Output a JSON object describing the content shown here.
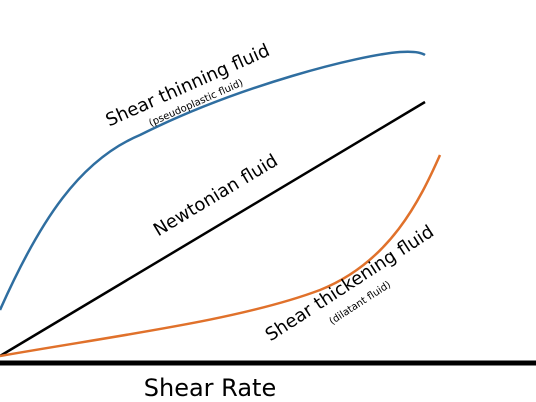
{
  "curves": [
    {
      "label": "Shear thinning fluid",
      "sublabel": "(pseudoplastic fluid)"
    },
    {
      "label": "Newtonian fluid"
    },
    {
      "label": "Shear thickening fluid",
      "sublabel": "(dilatant fluid)"
    }
  ],
  "x_axis_label": "Shear Rate"
}
